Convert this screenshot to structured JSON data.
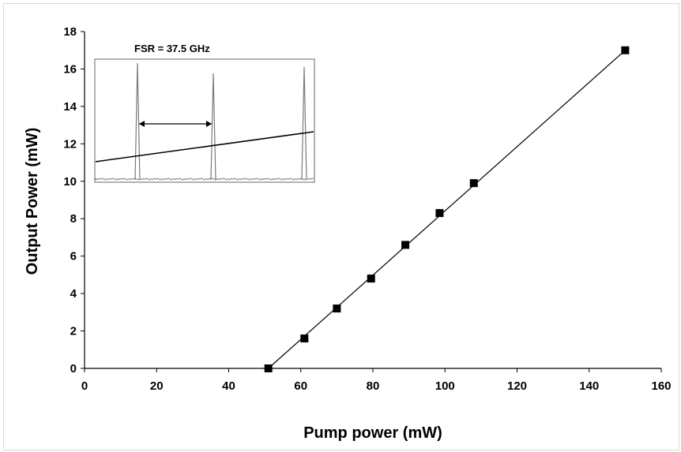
{
  "chart_data": {
    "type": "scatter",
    "xlabel": "Pump power (mW)",
    "ylabel": "Output Power (mW)",
    "xlim": [
      0,
      160
    ],
    "ylim": [
      0,
      18
    ],
    "xticks": [
      0,
      20,
      40,
      60,
      80,
      100,
      120,
      140,
      160
    ],
    "yticks": [
      0,
      2,
      4,
      6,
      8,
      10,
      12,
      14,
      16,
      18
    ],
    "grid": false,
    "series": [
      {
        "marker": "square",
        "x": [
          51,
          61,
          70,
          79.5,
          89,
          98.5,
          108,
          150
        ],
        "y": [
          0,
          1.6,
          3.2,
          4.8,
          6.6,
          8.3,
          9.9,
          17.0
        ]
      }
    ],
    "fit_line": {
      "x": [
        51,
        150
      ],
      "y": [
        0,
        17.0
      ]
    },
    "inset": {
      "label": "FSR = 37.5 GHz"
    },
    "colors": {
      "marker": "#000000",
      "line": "#000000",
      "inset_trace": "#7a7a7a"
    }
  }
}
